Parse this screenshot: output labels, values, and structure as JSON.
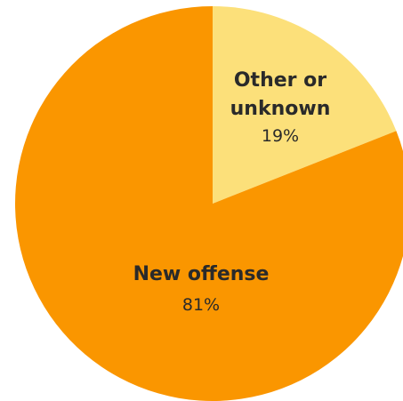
{
  "chart_data": {
    "type": "pie",
    "start_angle": "12 o'clock",
    "direction": "clockwise",
    "slices": [
      {
        "label_lines": [
          "Other or",
          "unknown"
        ],
        "value": 19,
        "value_label": "19%",
        "color": "#fce07a"
      },
      {
        "label_lines": [
          "New offense"
        ],
        "value": 81,
        "value_label": "81%",
        "color": "#fa9600"
      }
    ]
  }
}
